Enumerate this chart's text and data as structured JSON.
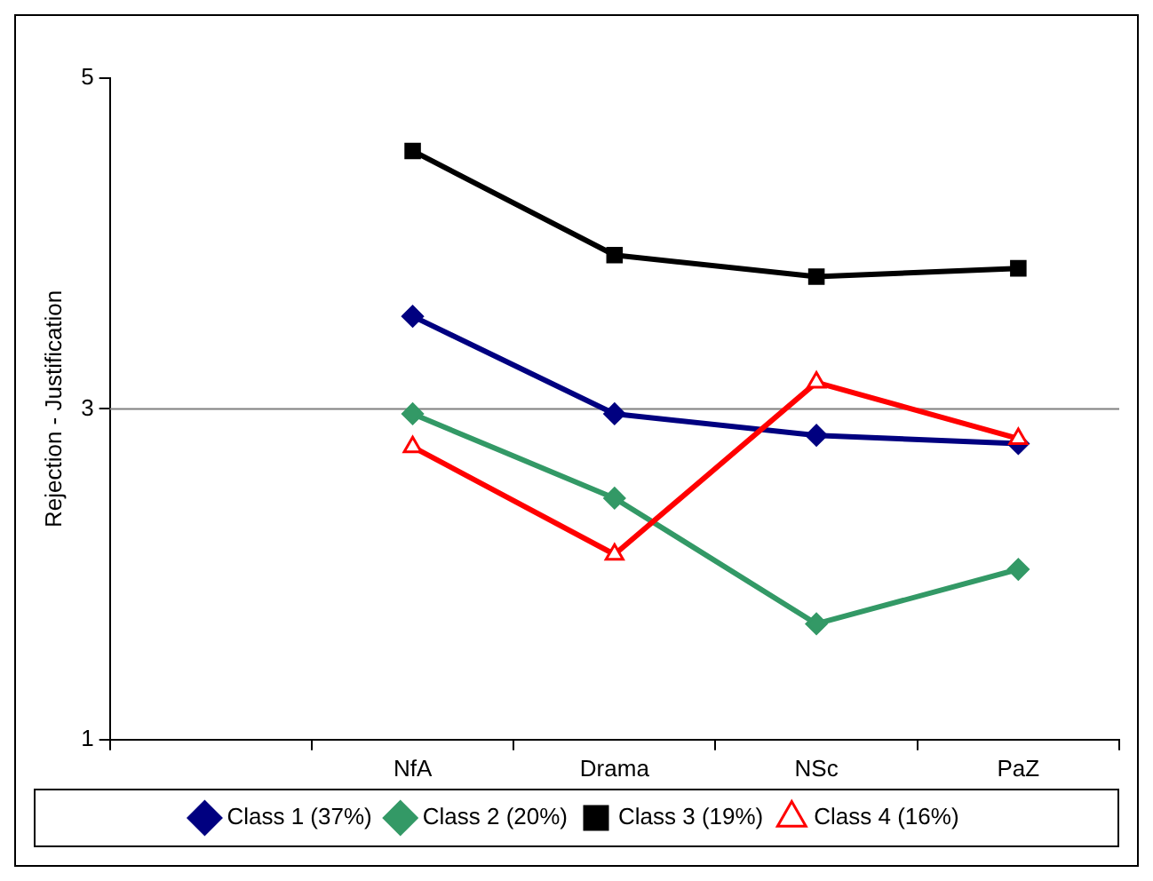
{
  "chart_data": {
    "type": "line",
    "ylabel": "Rejection - Justification",
    "categories": [
      null,
      "NfA",
      "Drama",
      "NSc",
      "PaZ"
    ],
    "series": [
      {
        "name": "Class 1 (37%)",
        "color": "#000080",
        "marker": "diamond",
        "values": [
          null,
          3.56,
          2.97,
          2.84,
          2.79
        ]
      },
      {
        "name": "Class 2 (20%)",
        "color": "#339966",
        "marker": "diamond",
        "values": [
          null,
          2.97,
          2.46,
          1.7,
          2.03
        ]
      },
      {
        "name": "Class 3 (19%)",
        "color": "#000000",
        "marker": "square",
        "values": [
          null,
          4.56,
          3.93,
          3.8,
          3.85
        ]
      },
      {
        "name": "Class 4 (16%)",
        "color": "#ff0000",
        "marker": "triangle",
        "values": [
          null,
          2.77,
          2.12,
          3.16,
          2.82
        ]
      }
    ],
    "ylim": [
      1,
      5
    ],
    "yticks": [
      1,
      3,
      5
    ],
    "ref_lines": [
      {
        "axis": "y",
        "value": 3,
        "color": "#808080"
      }
    ],
    "grid": false,
    "legend": "bottom"
  }
}
